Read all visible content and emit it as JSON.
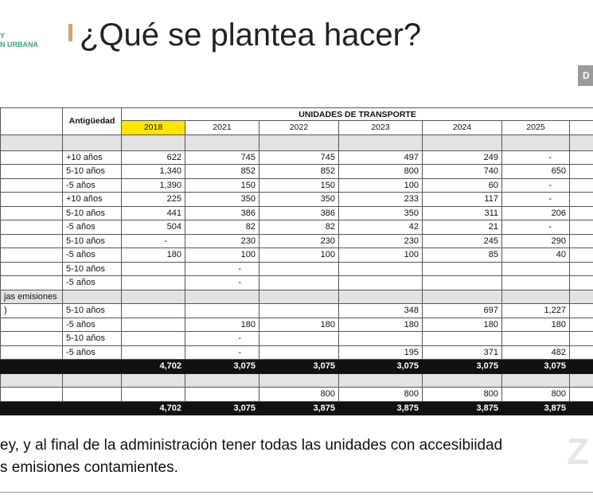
{
  "header": {
    "logo_lines": [
      "Y",
      "N URBANA"
    ],
    "title": "¿Qué se plantea hacer?"
  },
  "thumbnail": "D",
  "table": {
    "col_header": "Antigüedad",
    "group_header": "UNIDADES DE TRANSPORTE",
    "years": [
      "2018",
      "2021",
      "2022",
      "2023",
      "2024",
      "2025"
    ],
    "rows": [
      [
        null,
        null,
        null,
        null,
        null,
        null,
        null,
        null
      ],
      [
        null,
        "+10 años",
        "622",
        "745",
        "745",
        "497",
        "249",
        "-"
      ],
      [
        null,
        "5-10 años",
        "1,340",
        "852",
        "852",
        "800",
        "740",
        "650"
      ],
      [
        null,
        "-5 años",
        "1,390",
        "150",
        "150",
        "100",
        "60",
        "-"
      ],
      [
        null,
        "+10 años",
        "225",
        "350",
        "350",
        "233",
        "117",
        "-"
      ],
      [
        null,
        "5-10 años",
        "441",
        "386",
        "386",
        "350",
        "311",
        "206"
      ],
      [
        null,
        "-5 años",
        "504",
        "82",
        "82",
        "42",
        "21",
        "-"
      ],
      [
        null,
        "5-10 años",
        "-",
        "230",
        "230",
        "230",
        "245",
        "290"
      ],
      [
        null,
        "-5 años",
        "180",
        "100",
        "100",
        "100",
        "85",
        "40"
      ],
      [
        null,
        "5-10 años",
        null,
        "-",
        null,
        null,
        null,
        null
      ],
      [
        null,
        "-5 años",
        null,
        "-",
        null,
        null,
        null,
        null
      ],
      [
        "jas emisiones",
        null,
        null,
        null,
        null,
        null,
        null,
        null
      ],
      [
        ")",
        "5-10 años",
        null,
        null,
        null,
        "348",
        "697",
        "1,227"
      ],
      [
        null,
        "-5 años",
        null,
        "180",
        "180",
        "180",
        "180",
        "180"
      ],
      [
        null,
        "5-10 años",
        null,
        "-",
        null,
        null,
        null,
        null
      ],
      [
        null,
        "-5 años",
        null,
        "-",
        null,
        "195",
        "371",
        "482"
      ],
      [
        null,
        null,
        "4,702",
        "3,075",
        "3,075",
        "3,075",
        "3,075",
        "3,075"
      ],
      [
        null,
        null,
        null,
        null,
        null,
        null,
        null,
        null
      ],
      [
        null,
        null,
        null,
        null,
        "800",
        "800",
        "800",
        "800"
      ],
      [
        null,
        null,
        "4,702",
        "3,075",
        "3,875",
        "3,875",
        "3,875",
        "3,875"
      ]
    ]
  },
  "footer_text": [
    "ey, y al final de la administración tener todas las unidades con accesibiidad",
    "s emisiones contamientes."
  ],
  "watermark": "Z"
}
